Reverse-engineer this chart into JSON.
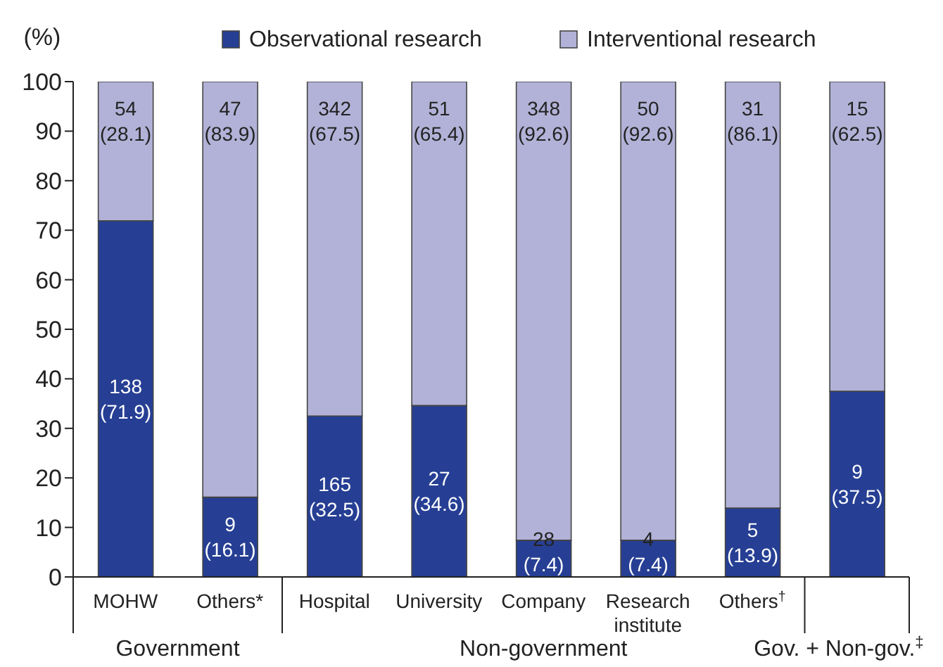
{
  "chart_data": {
    "type": "bar",
    "stacked": true,
    "ylabel": "(%)",
    "categories": [
      "MOHW",
      "Others*",
      "Hospital",
      "University",
      "Company",
      "Research institute",
      "Others$^{†}$",
      null
    ],
    "series": [
      {
        "name": "Observational research",
        "color": "#263f94",
        "values": [
          71.9,
          16.1,
          32.5,
          34.6,
          7.4,
          7.4,
          13.9,
          37.5
        ],
        "value_labels": [
          "138\n(71.9)",
          "9\n(16.1)",
          "165\n(32.5)",
          "27\n(34.6)",
          "28\n(7.4)",
          "4\n(7.4)",
          "5\n(13.9)",
          "9\n(37.5)"
        ]
      },
      {
        "name": "Interventional research",
        "color": "#b2b2d8",
        "values": [
          28.1,
          83.9,
          67.5,
          65.4,
          92.6,
          92.6,
          86.1,
          62.5
        ],
        "value_labels": [
          "54\n(28.1)",
          "47\n(83.9)",
          "342\n(67.5)",
          "51\n(65.4)",
          "348\n(92.6)",
          "50\n(92.6)",
          "31\n(86.1)",
          "15\n(62.5)"
        ]
      }
    ],
    "ylim": [
      0,
      100
    ],
    "yticks": [
      0,
      10,
      20,
      30,
      40,
      50,
      60,
      70,
      80,
      90,
      100
    ],
    "grid": false,
    "legend": "top",
    "annotations": [
      "Government",
      "Non-government",
      "Gov. + Non-gov.$^{‡}$"
    ]
  }
}
